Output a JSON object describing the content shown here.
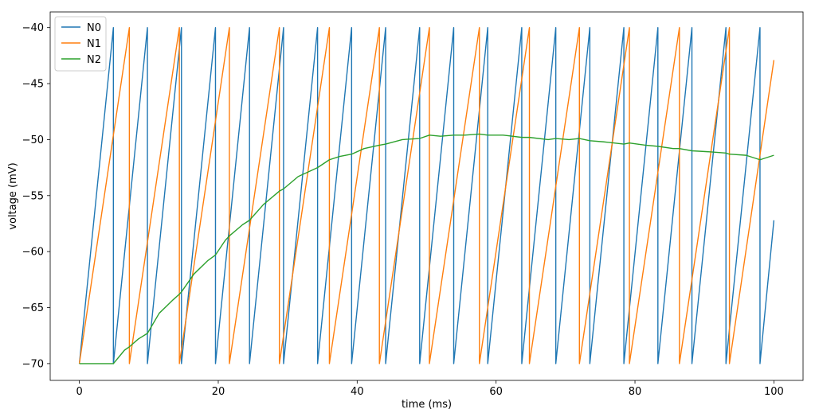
{
  "chart_data": {
    "type": "line",
    "xlabel": "time (ms)",
    "ylabel": "voltage (mV)",
    "xlim": [
      -4.2,
      104.2
    ],
    "ylim": [
      -71.5,
      -38.6
    ],
    "x_ticks": [
      0,
      20,
      40,
      60,
      80,
      100
    ],
    "y_ticks": [
      -70,
      -65,
      -60,
      -55,
      -50,
      -45,
      -40
    ],
    "grid": false,
    "legend_position": "top-left",
    "series": [
      {
        "name": "N0",
        "color": "#1f77b4",
        "x": [
          0,
          4.9,
          4.9,
          9.8,
          9.8,
          14.7,
          14.7,
          19.6,
          19.6,
          24.5,
          24.5,
          29.4,
          29.4,
          34.3,
          34.3,
          39.2,
          39.2,
          44.1,
          44.1,
          49.0,
          49.0,
          53.9,
          53.9,
          58.8,
          58.8,
          63.7,
          63.7,
          68.6,
          68.6,
          73.5,
          73.5,
          78.4,
          78.4,
          83.3,
          83.3,
          88.2,
          88.2,
          93.1,
          93.1,
          98.0,
          98.0,
          100
        ],
        "values": [
          -70,
          -40,
          -70,
          -40,
          -70,
          -40,
          -70,
          -40,
          -70,
          -40,
          -70,
          -40,
          -70,
          -40,
          -70,
          -40,
          -70,
          -40,
          -70,
          -40,
          -70,
          -40,
          -70,
          -40,
          -70,
          -40,
          -70,
          -40,
          -70,
          -40,
          -70,
          -40,
          -70,
          -40,
          -70,
          -40,
          -70,
          -40,
          -70,
          -40,
          -70,
          -57.2
        ]
      },
      {
        "name": "N1",
        "color": "#ff7f0e",
        "x": [
          0,
          7.2,
          7.2,
          14.4,
          14.4,
          21.6,
          21.6,
          28.8,
          28.8,
          36.0,
          36.0,
          43.2,
          43.2,
          50.4,
          50.4,
          57.6,
          57.6,
          64.8,
          64.8,
          72.0,
          72.0,
          79.2,
          79.2,
          86.4,
          86.4,
          93.6,
          93.6,
          100
        ],
        "values": [
          -70,
          -40,
          -70,
          -40,
          -70,
          -40,
          -70,
          -40,
          -70,
          -40,
          -70,
          -40,
          -70,
          -40,
          -70,
          -40,
          -70,
          -40,
          -70,
          -40,
          -70,
          -40,
          -70,
          -40,
          -70,
          -40,
          -70,
          -42.9
        ]
      },
      {
        "name": "N2",
        "color": "#2ca02c",
        "x": [
          0,
          4.9,
          6.5,
          7.2,
          8.5,
          9.8,
          11.5,
          13.5,
          14.4,
          14.7,
          16.5,
          18.5,
          19.6,
          21.0,
          21.6,
          23.5,
          24.5,
          26.5,
          28.8,
          29.4,
          31.5,
          34.3,
          36.0,
          37.5,
          39.2,
          41.0,
          43.2,
          44.1,
          46.5,
          49.0,
          50.4,
          52.0,
          53.9,
          55.5,
          57.6,
          58.8,
          61.0,
          63.7,
          64.8,
          67.5,
          68.6,
          70.5,
          72.0,
          73.5,
          75.5,
          78.4,
          79.2,
          81.5,
          83.3,
          85.5,
          86.4,
          88.2,
          91.0,
          93.1,
          93.6,
          96.0,
          98.0,
          100
        ],
        "values": [
          -70,
          -70,
          -68.8,
          -68.5,
          -67.8,
          -67.3,
          -65.5,
          -64.3,
          -63.8,
          -63.6,
          -62.0,
          -60.8,
          -60.3,
          -59.0,
          -58.6,
          -57.6,
          -57.2,
          -55.8,
          -54.6,
          -54.4,
          -53.3,
          -52.5,
          -51.8,
          -51.5,
          -51.3,
          -50.8,
          -50.5,
          -50.4,
          -50.0,
          -49.9,
          -49.6,
          -49.7,
          -49.6,
          -49.6,
          -49.5,
          -49.6,
          -49.6,
          -49.8,
          -49.8,
          -50.0,
          -49.9,
          -50.0,
          -49.9,
          -50.1,
          -50.2,
          -50.4,
          -50.3,
          -50.5,
          -50.6,
          -50.8,
          -50.8,
          -51.0,
          -51.1,
          -51.2,
          -51.3,
          -51.4,
          -51.8,
          -51.4
        ]
      }
    ]
  }
}
